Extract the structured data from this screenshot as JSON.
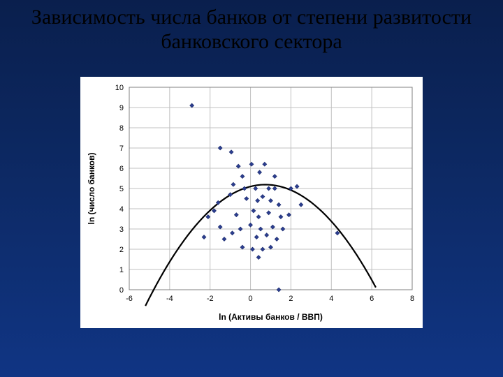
{
  "slide": {
    "title": "Зависимость числа банков от степени развитости банковского сектора"
  },
  "chart": {
    "type": "scatter",
    "background_color": "#ffffff",
    "plot_border_color": "#808080",
    "grid_color": "#c0c0c0",
    "axis_color": "#000000",
    "xlabel": "ln (Активы банков / ВВП)",
    "ylabel": "ln (число банков)",
    "label_fontsize": 12,
    "tick_fontsize": 11,
    "xlim": [
      -6,
      8
    ],
    "ylim": [
      0,
      10
    ],
    "xtick_step": 2,
    "ytick_step": 1,
    "xticks": [
      -6,
      -4,
      -2,
      0,
      2,
      4,
      6,
      8
    ],
    "yticks": [
      0,
      1,
      2,
      3,
      4,
      5,
      6,
      7,
      8,
      9,
      10
    ],
    "marker": {
      "shape": "diamond",
      "size": 6,
      "fill": "#2c3e8f",
      "stroke": "#1a2a6b"
    },
    "points": [
      [
        -2.9,
        9.1
      ],
      [
        -1.5,
        7.0
      ],
      [
        -0.95,
        6.8
      ],
      [
        -0.6,
        6.1
      ],
      [
        0.05,
        6.2
      ],
      [
        0.7,
        6.2
      ],
      [
        -0.4,
        5.6
      ],
      [
        0.45,
        5.8
      ],
      [
        1.2,
        5.6
      ],
      [
        -0.85,
        5.2
      ],
      [
        -0.3,
        5.0
      ],
      [
        0.25,
        5.0
      ],
      [
        0.9,
        5.0
      ],
      [
        1.2,
        5.0
      ],
      [
        2.0,
        5.0
      ],
      [
        2.3,
        5.1
      ],
      [
        -1.6,
        4.3
      ],
      [
        -1.0,
        4.7
      ],
      [
        -0.2,
        4.5
      ],
      [
        0.35,
        4.4
      ],
      [
        0.6,
        4.6
      ],
      [
        1.0,
        4.4
      ],
      [
        1.4,
        4.2
      ],
      [
        -2.1,
        3.6
      ],
      [
        -1.8,
        3.9
      ],
      [
        -0.7,
        3.7
      ],
      [
        0.15,
        3.9
      ],
      [
        0.4,
        3.6
      ],
      [
        0.9,
        3.8
      ],
      [
        1.5,
        3.6
      ],
      [
        1.9,
        3.7
      ],
      [
        -1.5,
        3.1
      ],
      [
        -0.5,
        3.0
      ],
      [
        0.0,
        3.2
      ],
      [
        0.5,
        3.0
      ],
      [
        1.1,
        3.1
      ],
      [
        1.6,
        3.0
      ],
      [
        -1.3,
        2.5
      ],
      [
        -0.9,
        2.8
      ],
      [
        0.3,
        2.6
      ],
      [
        0.8,
        2.7
      ],
      [
        1.3,
        2.5
      ],
      [
        4.3,
        2.8
      ],
      [
        -0.4,
        2.1
      ],
      [
        0.1,
        2.0
      ],
      [
        0.6,
        2.0
      ],
      [
        1.0,
        2.1
      ],
      [
        0.4,
        1.6
      ],
      [
        1.4,
        0.0
      ],
      [
        2.5,
        4.2
      ],
      [
        -2.3,
        2.6
      ]
    ],
    "trend": {
      "color": "#000000",
      "width": 2.2,
      "type": "quadratic",
      "a": -0.17,
      "b": 0.25,
      "c": 5.1,
      "x_from": -5.2,
      "x_to": 6.2
    }
  }
}
